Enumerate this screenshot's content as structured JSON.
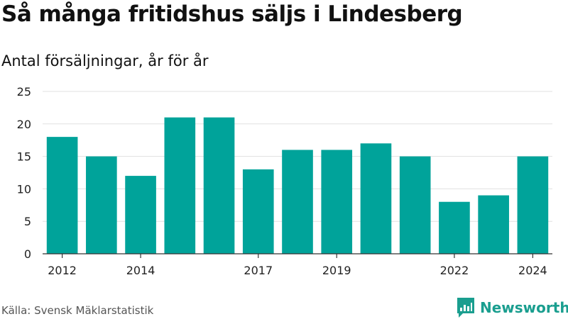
{
  "header": {
    "title": "Så många fritidshus säljs i Lindesberg",
    "subtitle": "Antal försäljningar, år för år"
  },
  "footer": {
    "source": "Källa: Svensk Mäklarstatistik",
    "brand": "Newsworthy",
    "brand_icon": "newsworthy-logo-icon",
    "brand_color": "#1a9e8f"
  },
  "chart_data": {
    "type": "bar",
    "categories": [
      "2012",
      "2013",
      "2014",
      "2015",
      "2016",
      "2017",
      "2018",
      "2019",
      "2020",
      "2021",
      "2022",
      "2023",
      "2024"
    ],
    "values": [
      18,
      15,
      12,
      21,
      21,
      13,
      16,
      16,
      17,
      15,
      8,
      9,
      15
    ],
    "x_tick_labels": [
      "2012",
      "2014",
      "2017",
      "2019",
      "2022",
      "2024"
    ],
    "y_ticks": [
      0,
      5,
      10,
      15,
      20,
      25
    ],
    "ylim": [
      0,
      25
    ],
    "grid": true,
    "bar_color": "#00a39a",
    "grid_color": "#e0e0e0",
    "axis_color": "#333333"
  }
}
